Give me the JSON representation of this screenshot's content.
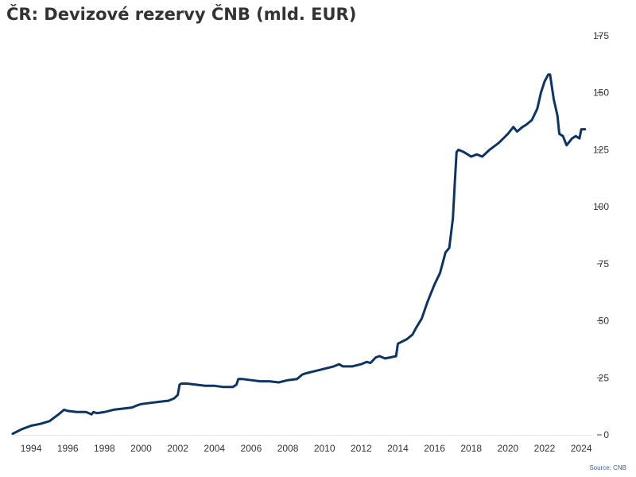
{
  "chart_data": {
    "type": "line",
    "title": "ČR: Devizové rezervy ČNB (mld. EUR)",
    "source": "Source: CNB",
    "xlabel": "",
    "ylabel": "",
    "xlim": [
      1993.0,
      2024.6
    ],
    "ylim": [
      0,
      175
    ],
    "grid": false,
    "y_axis_side": "right",
    "x_ticks": [
      "1994",
      "1996",
      "1998",
      "2000",
      "2002",
      "2004",
      "2006",
      "2008",
      "2010",
      "2012",
      "2014",
      "2016",
      "2018",
      "2020",
      "2022",
      "2024"
    ],
    "y_ticks": [
      "0",
      "25",
      "50",
      "75",
      "100",
      "125",
      "150",
      "175"
    ],
    "series": [
      {
        "name": "",
        "color": "#0d3465",
        "x": [
          1993.0,
          1993.5,
          1994.0,
          1994.5,
          1995.0,
          1995.5,
          1995.8,
          1996.0,
          1996.5,
          1997.0,
          1997.3,
          1997.4,
          1997.6,
          1998.0,
          1998.5,
          1999.0,
          1999.5,
          1999.8,
          2000.0,
          2000.5,
          2001.0,
          2001.5,
          2001.8,
          2002.0,
          2002.1,
          2002.2,
          2002.5,
          2003.0,
          2003.5,
          2004.0,
          2004.5,
          2005.0,
          2005.2,
          2005.3,
          2005.5,
          2006.0,
          2006.5,
          2007.0,
          2007.5,
          2008.0,
          2008.5,
          2008.8,
          2009.0,
          2009.5,
          2010.0,
          2010.5,
          2010.8,
          2011.0,
          2011.5,
          2012.0,
          2012.3,
          2012.5,
          2012.8,
          2013.0,
          2013.3,
          2013.6,
          2013.9,
          2014.0,
          2014.5,
          2014.8,
          2015.0,
          2015.3,
          2015.6,
          2015.8,
          2016.0,
          2016.3,
          2016.6,
          2016.8,
          2017.0,
          2017.1,
          2017.2,
          2017.3,
          2017.6,
          2018.0,
          2018.3,
          2018.6,
          2019.0,
          2019.5,
          2020.0,
          2020.3,
          2020.5,
          2020.8,
          2021.0,
          2021.3,
          2021.6,
          2021.8,
          2022.0,
          2022.2,
          2022.3,
          2022.5,
          2022.7,
          2022.8,
          2023.0,
          2023.2,
          2023.3,
          2023.5,
          2023.7,
          2023.9,
          2024.0,
          2024.2
        ],
        "values": [
          0.5,
          2.5,
          4.0,
          4.8,
          6.0,
          9.0,
          11.0,
          10.5,
          10.0,
          10.0,
          9.0,
          10.0,
          9.5,
          10.0,
          11.0,
          11.5,
          12.0,
          13.0,
          13.5,
          14.0,
          14.5,
          15.0,
          16.0,
          17.5,
          22.0,
          22.5,
          22.5,
          22.0,
          21.5,
          21.5,
          21.0,
          21.0,
          22.0,
          24.5,
          24.5,
          24.0,
          23.5,
          23.5,
          23.0,
          24.0,
          24.5,
          26.5,
          27.0,
          28.0,
          29.0,
          30.0,
          31.0,
          30.0,
          30.0,
          31.0,
          32.0,
          31.5,
          34.0,
          34.5,
          33.5,
          34.0,
          34.5,
          40.0,
          42.0,
          44.0,
          47.0,
          51.0,
          58.0,
          62.0,
          66.0,
          71.0,
          80.0,
          82.0,
          95.0,
          110.0,
          124.0,
          125.0,
          124.0,
          122.0,
          123.0,
          122.0,
          125.0,
          128.0,
          132.0,
          135.0,
          133.0,
          135.0,
          136.0,
          138.0,
          143.0,
          150.0,
          155.0,
          158.0,
          158.0,
          147.0,
          140.0,
          132.0,
          131.0,
          127.0,
          128.0,
          130.0,
          131.0,
          130.0,
          134.0,
          134.0
        ]
      }
    ]
  }
}
